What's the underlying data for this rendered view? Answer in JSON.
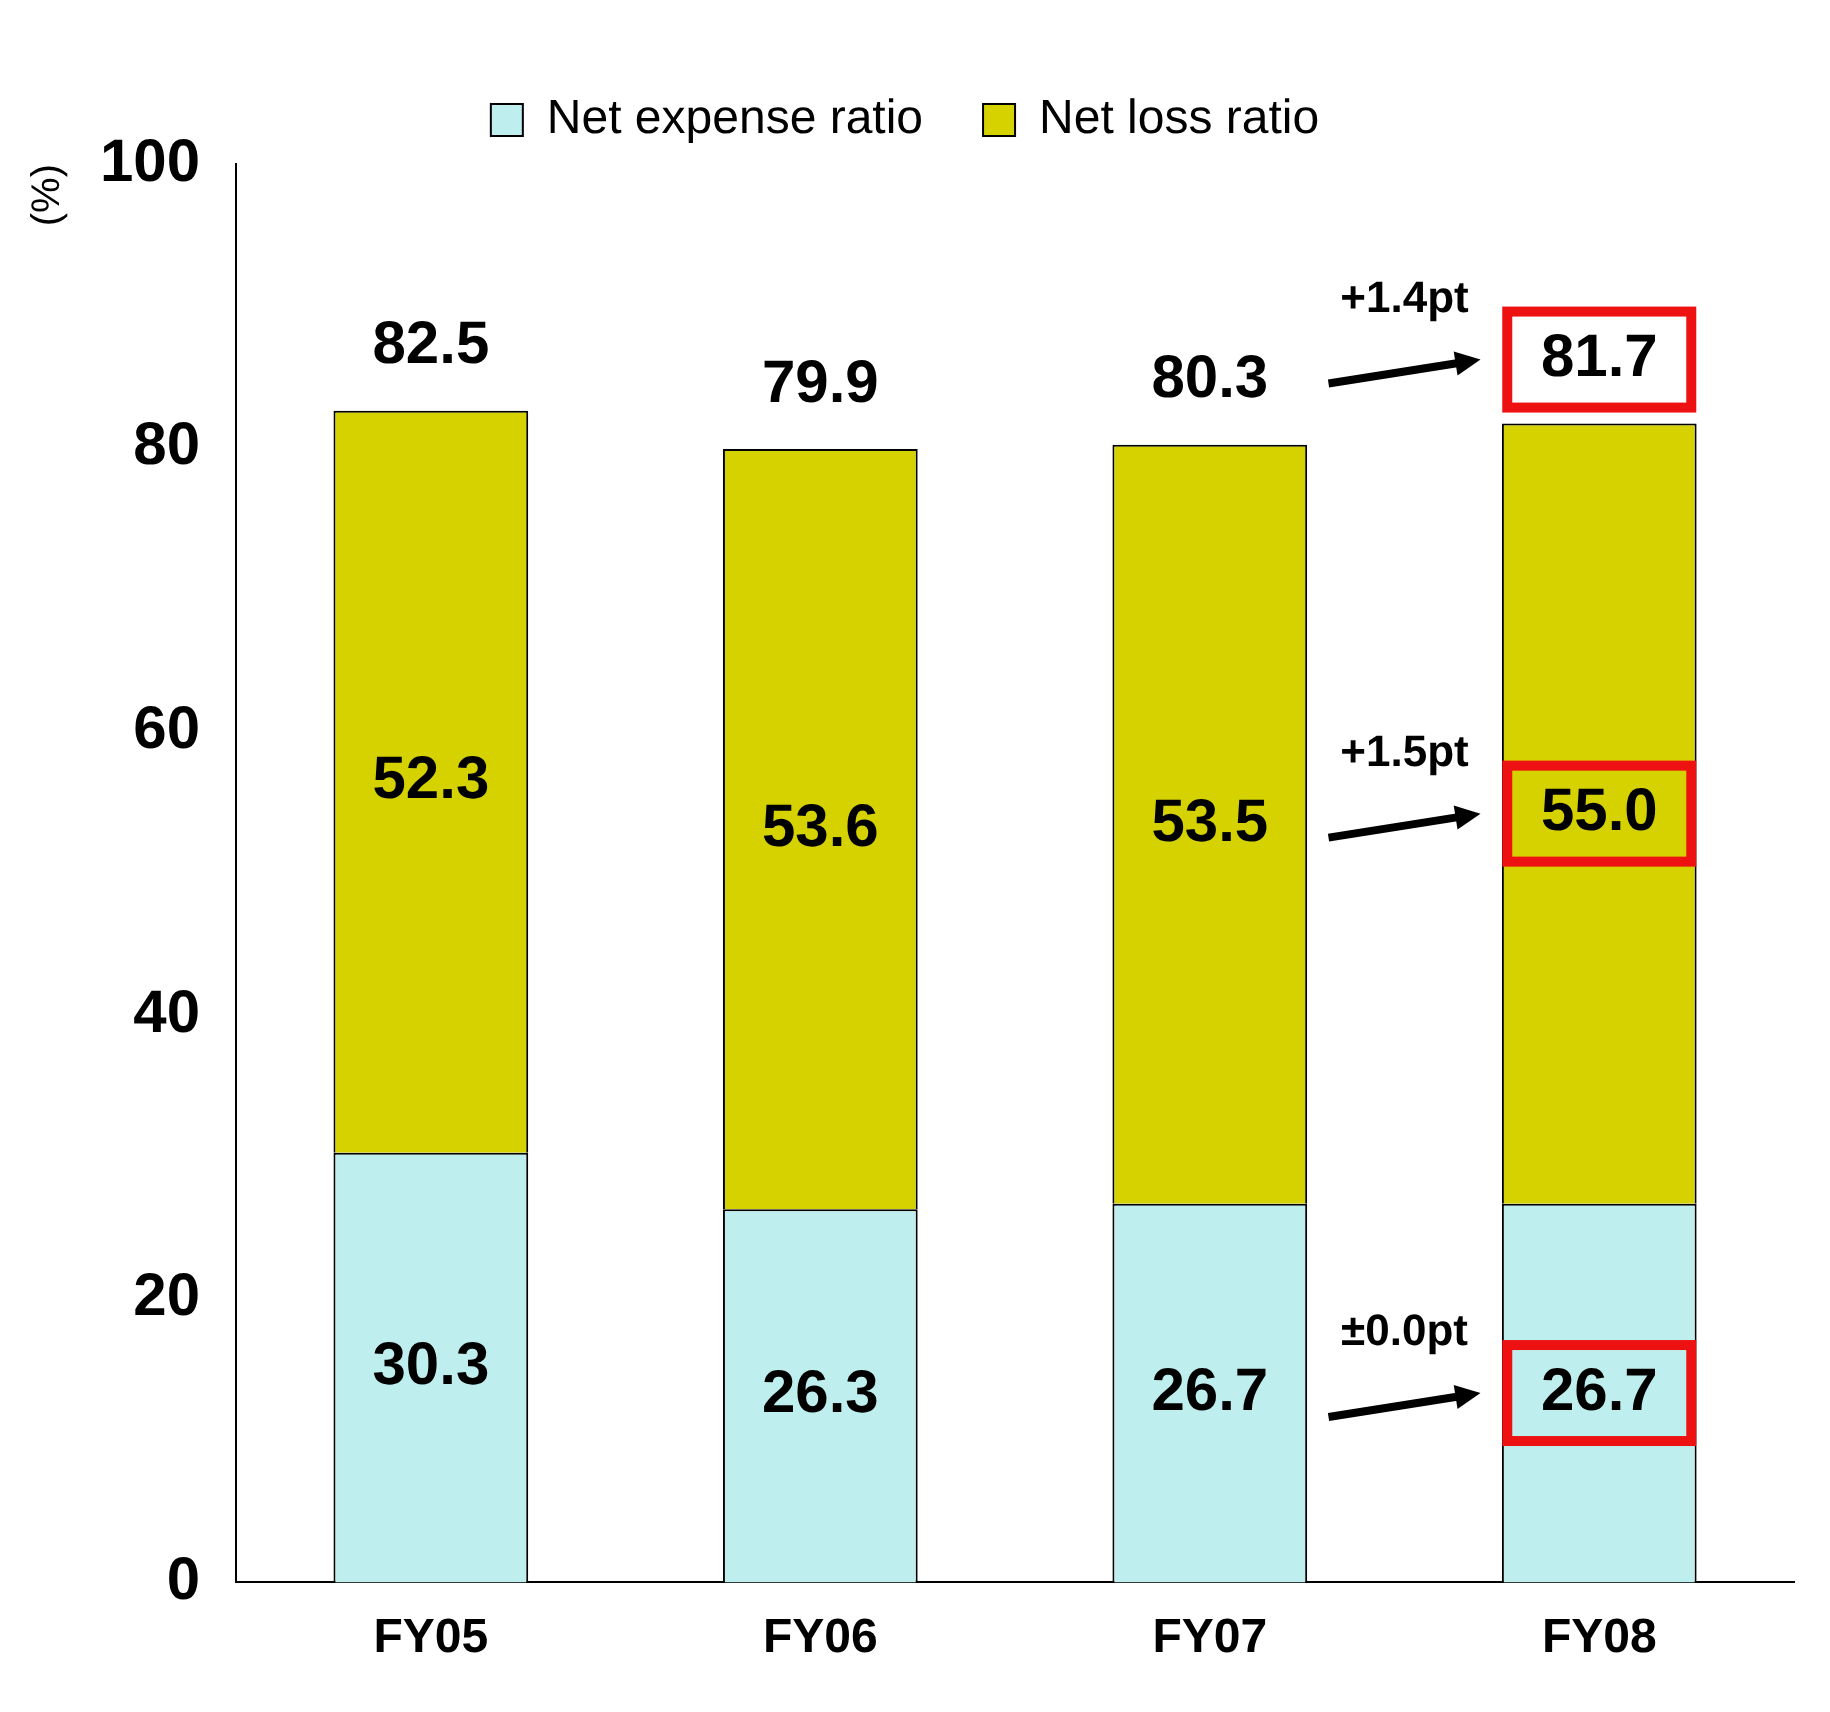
{
  "chart_data": {
    "type": "bar",
    "stacked": true,
    "ylabel": "(%)",
    "categories": [
      "FY05",
      "FY06",
      "FY07",
      "FY08"
    ],
    "series": [
      {
        "name": "Net expense ratio",
        "color": "#bfeeee",
        "values": [
          30.3,
          26.3,
          26.7,
          26.7
        ],
        "value_labels": [
          "30.3",
          "26.3",
          "26.7",
          "26.7"
        ]
      },
      {
        "name": "Net loss ratio",
        "color": "#d6d200",
        "values": [
          52.3,
          53.6,
          53.5,
          55.0
        ],
        "value_labels": [
          "52.3",
          "53.6",
          "53.5",
          "55.0"
        ]
      }
    ],
    "ylim": [
      0,
      100
    ],
    "yticks": [
      0,
      20,
      40,
      60,
      80,
      100
    ],
    "grid": false,
    "legend": "top",
    "totals": [
      "82.5",
      "79.9",
      "80.3",
      "81.7"
    ],
    "annotations": [
      "+1.4pt",
      "+1.5pt",
      "±0.0pt"
    ]
  }
}
